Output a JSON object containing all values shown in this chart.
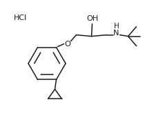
{
  "background_color": "#ffffff",
  "line_color": "#1a1a1a",
  "line_width": 1.1,
  "font_size": 7.5,
  "hcl_label": "HCl",
  "oh_label": "OH",
  "nh_label": "H",
  "o_label": "O"
}
